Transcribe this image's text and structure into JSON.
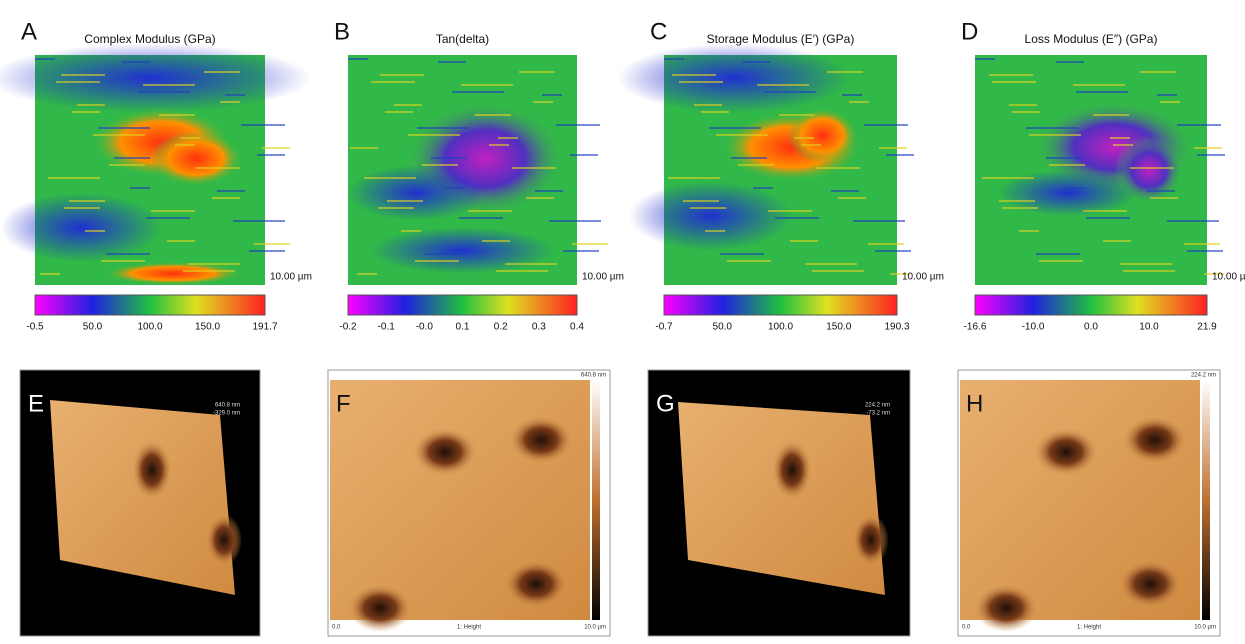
{
  "top_panels": [
    {
      "letter": "A",
      "title": "Complex Modulus (GPa)",
      "scale_label": "10.00 µm",
      "colorbar_labels": [
        "-0.5",
        "50.0",
        "100.0",
        "150.0",
        "191.7"
      ]
    },
    {
      "letter": "B",
      "title": "Tan(delta)",
      "scale_label": "10.00 µm",
      "colorbar_labels": [
        "-0.2",
        "-0.1",
        "-0.0",
        "0.1",
        "0.2",
        "0.3",
        "0.4"
      ]
    },
    {
      "letter": "C",
      "title": "Storage Modulus (E′) (GPa)",
      "scale_label": "10.00 µm",
      "colorbar_labels": [
        "-0.7",
        "50.0",
        "100.0",
        "150.0",
        "190.3"
      ]
    },
    {
      "letter": "D",
      "title": "Loss Modulus (E″) (GPa)",
      "scale_label": "10.00 µm",
      "colorbar_labels": [
        "-16.6",
        "-10.0",
        "0.0",
        "10.0",
        "21.9"
      ]
    }
  ],
  "bottom_panels": [
    {
      "letter": "E",
      "labels": [
        "640.8 nm",
        "-329.0 nm"
      ]
    },
    {
      "letter": "F",
      "labels": [
        "640.8 nm",
        "0.0",
        "1: Height",
        "10.0 µm"
      ]
    },
    {
      "letter": "G",
      "labels": [
        "224.2 nm",
        "-73.2 nm"
      ]
    },
    {
      "letter": "H",
      "labels": [
        "224.2 nm",
        "0.0",
        "1: Height",
        "10.0 µm"
      ]
    }
  ]
}
